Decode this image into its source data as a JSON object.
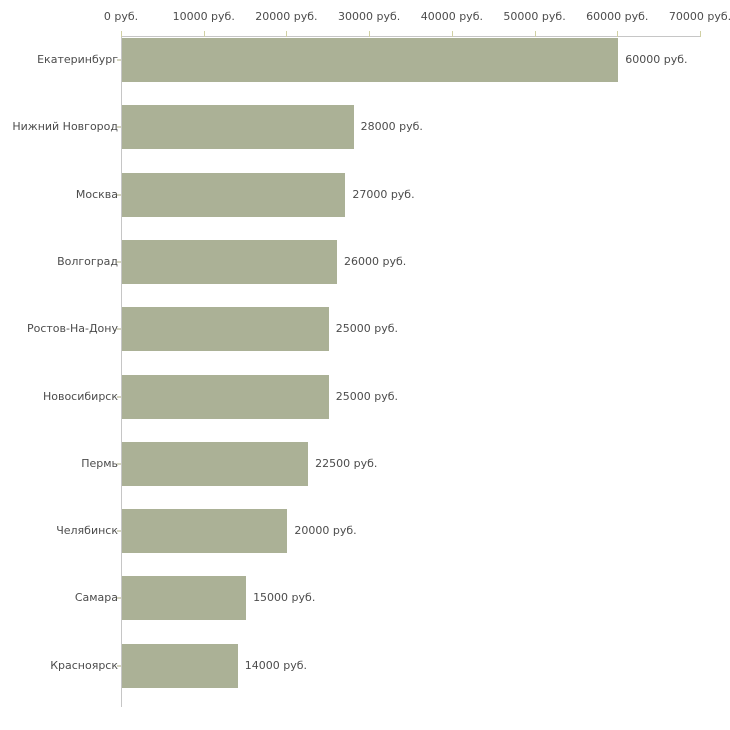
{
  "chart_data": {
    "type": "bar",
    "orientation": "horizontal",
    "title": "",
    "categories": [
      "Екатеринбург",
      "Нижний Новгород",
      "Москва",
      "Волгоград",
      "Ростов-На-Дону",
      "Новосибирск",
      "Пермь",
      "Челябинск",
      "Самара",
      "Красноярск"
    ],
    "values": [
      60000,
      28000,
      27000,
      26000,
      25000,
      25000,
      22500,
      20000,
      15000,
      14000
    ],
    "value_labels": [
      "60000 руб.",
      "28000 руб.",
      "27000 руб.",
      "26000 руб.",
      "25000 руб.",
      "25000 руб.",
      "22500 руб.",
      "20000 руб.",
      "15000 руб.",
      "14000 руб."
    ],
    "x_tick_labels": [
      "0 руб.",
      "10000 руб.",
      "20000 руб.",
      "30000 руб.",
      "40000 руб.",
      "50000 руб.",
      "60000 руб.",
      "70000 руб."
    ],
    "xlim": [
      0,
      70000
    ],
    "unit": "руб.",
    "grid": false,
    "legend": false,
    "axis_position": "top",
    "colors": {
      "bar": "#abb196",
      "axis_line": "#c6c6c6",
      "tick": "#d0d0a4",
      "category_tick": "#d6d6c2",
      "text": "#4c4c4c",
      "background": "#ffffff"
    }
  }
}
